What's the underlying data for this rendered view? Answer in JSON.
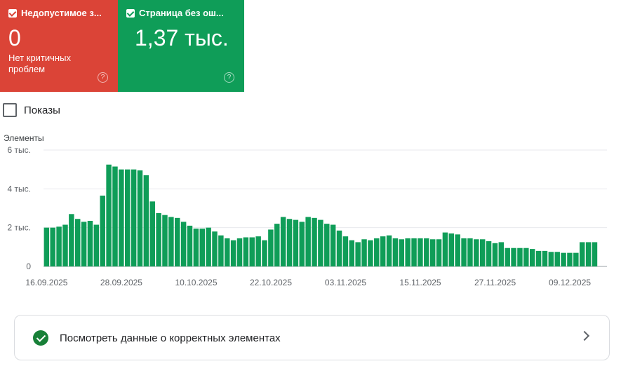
{
  "cards": [
    {
      "title": "Недопустимое з...",
      "value": "0",
      "description": "Нет критичных проблем",
      "color": "#db4437"
    },
    {
      "title": "Страница без ош...",
      "value": "1,37 тыс.",
      "description": "",
      "color": "#0f9d58"
    }
  ],
  "impressions_label": "Показы",
  "chart_data": {
    "type": "bar",
    "ylabel": "Элементы",
    "ylim": [
      0,
      6000
    ],
    "ytick_labels": [
      "0",
      "2 тыс.",
      "4 тыс.",
      "6 тыс."
    ],
    "yticks": [
      0,
      2000,
      4000,
      6000
    ],
    "xtick_labels": [
      "16.09.2025",
      "28.09.2025",
      "10.10.2025",
      "22.10.2025",
      "03.11.2025",
      "15.11.2025",
      "27.11.2025",
      "09.12.2025"
    ],
    "bar_color": "#0f9d58",
    "grid": true,
    "x": [
      "16.09.2025",
      "17.09.2025",
      "18.09.2025",
      "19.09.2025",
      "20.09.2025",
      "21.09.2025",
      "22.09.2025",
      "23.09.2025",
      "24.09.2025",
      "25.09.2025",
      "26.09.2025",
      "27.09.2025",
      "28.09.2025",
      "29.09.2025",
      "30.09.2025",
      "01.10.2025",
      "02.10.2025",
      "03.10.2025",
      "04.10.2025",
      "05.10.2025",
      "06.10.2025",
      "07.10.2025",
      "08.10.2025",
      "09.10.2025",
      "10.10.2025",
      "11.10.2025",
      "12.10.2025",
      "13.10.2025",
      "14.10.2025",
      "15.10.2025",
      "16.10.2025",
      "17.10.2025",
      "18.10.2025",
      "19.10.2025",
      "20.10.2025",
      "21.10.2025",
      "22.10.2025",
      "23.10.2025",
      "24.10.2025",
      "25.10.2025",
      "26.10.2025",
      "27.10.2025",
      "28.10.2025",
      "29.10.2025",
      "30.10.2025",
      "31.10.2025",
      "01.11.2025",
      "02.11.2025",
      "03.11.2025",
      "04.11.2025",
      "05.11.2025",
      "06.11.2025",
      "07.11.2025",
      "08.11.2025",
      "09.11.2025",
      "10.11.2025",
      "11.11.2025",
      "12.11.2025",
      "13.11.2025",
      "14.11.2025",
      "15.11.2025",
      "16.11.2025",
      "17.11.2025",
      "18.11.2025",
      "19.11.2025",
      "20.11.2025",
      "21.11.2025",
      "22.11.2025",
      "23.11.2025",
      "24.11.2025",
      "25.11.2025",
      "26.11.2025",
      "27.11.2025",
      "28.11.2025",
      "29.11.2025",
      "30.11.2025",
      "01.12.2025",
      "02.12.2025",
      "03.12.2025",
      "04.12.2025",
      "05.12.2025",
      "06.12.2025",
      "07.12.2025",
      "08.12.2025",
      "09.12.2025",
      "10.12.2025",
      "11.12.2025",
      "12.12.2025",
      "13.12.2025"
    ],
    "values": [
      2000,
      2000,
      2050,
      2150,
      2700,
      2450,
      2300,
      2350,
      2150,
      3650,
      5250,
      5150,
      5000,
      5000,
      5000,
      4950,
      4700,
      3350,
      2750,
      2650,
      2550,
      2500,
      2300,
      2100,
      1950,
      1950,
      2000,
      1800,
      1600,
      1450,
      1350,
      1450,
      1500,
      1500,
      1550,
      1350,
      1900,
      2200,
      2550,
      2450,
      2400,
      2300,
      2550,
      2500,
      2400,
      2200,
      2150,
      1850,
      1550,
      1350,
      1250,
      1400,
      1350,
      1450,
      1550,
      1600,
      1450,
      1400,
      1450,
      1450,
      1450,
      1450,
      1400,
      1400,
      1750,
      1700,
      1650,
      1450,
      1450,
      1400,
      1400,
      1300,
      1200,
      1250,
      950,
      950,
      950,
      950,
      900,
      800,
      800,
      750,
      750,
      700,
      700,
      700,
      1250,
      1250,
      1250
    ]
  },
  "details_link": "Посмотреть данные о корректных элементах"
}
